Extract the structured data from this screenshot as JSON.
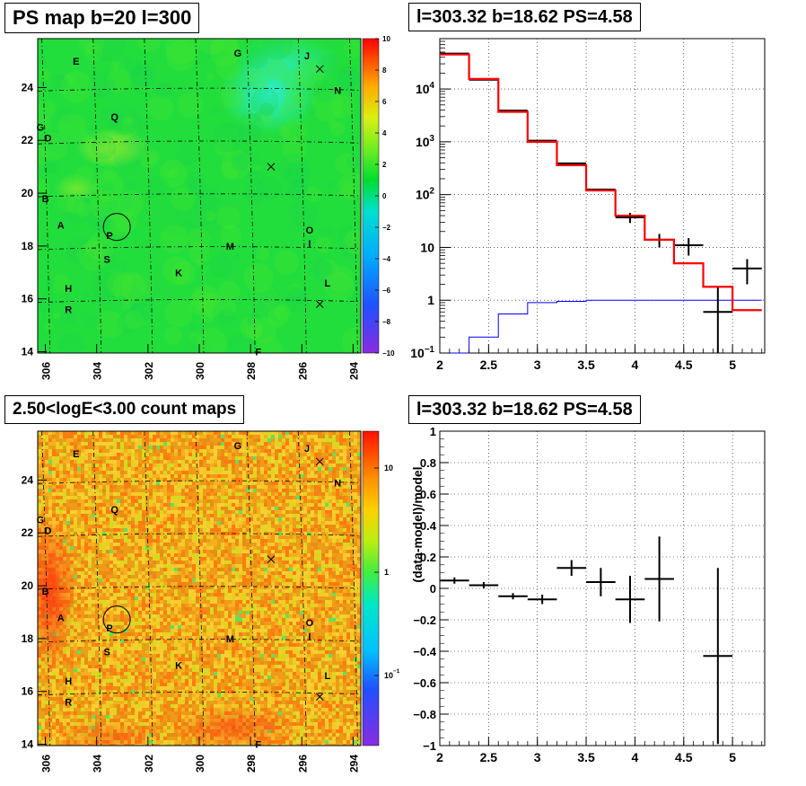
{
  "panels": {
    "ps_map_title": "PS map b=20 l=300",
    "spectrum_title": "l=303.32 b=18.62 PS=4.58",
    "count_map_title": "2.50<logE<3.00 count maps",
    "residual_title": "l=303.32 b=18.62 PS=4.58"
  },
  "chart_data": [
    {
      "type": "heatmap",
      "title": "PS map b=20 l=300",
      "xlabel": "",
      "ylabel": "",
      "x_ticks": [
        "306",
        "304",
        "302",
        "300",
        "298",
        "296",
        "294"
      ],
      "y_ticks": [
        "24",
        "22",
        "20",
        "18",
        "16",
        "14"
      ],
      "xlim": [
        306.5,
        293.8
      ],
      "ylim": [
        14,
        25.8
      ],
      "colorbar": {
        "min": -10,
        "max": 10,
        "ticks": [
          "10",
          "8",
          "6",
          "4",
          "2",
          "0",
          "−2",
          "−4",
          "−6",
          "−8",
          "−10"
        ]
      },
      "labels": [
        {
          "text": "E",
          "l": 304.8,
          "b": 25.0
        },
        {
          "text": "G",
          "l": 298.5,
          "b": 25.3
        },
        {
          "text": "J",
          "l": 295.8,
          "b": 25.2
        },
        {
          "text": "N",
          "l": 294.6,
          "b": 23.9
        },
        {
          "text": "Q",
          "l": 303.3,
          "b": 22.9
        },
        {
          "text": "G",
          "l": 306.2,
          "b": 22.5
        },
        {
          "text": "D",
          "l": 305.9,
          "b": 22.1
        },
        {
          "text": "B",
          "l": 306.0,
          "b": 19.8
        },
        {
          "text": "A",
          "l": 305.4,
          "b": 18.8
        },
        {
          "text": "P",
          "l": 303.5,
          "b": 18.4
        },
        {
          "text": "S",
          "l": 303.6,
          "b": 17.5
        },
        {
          "text": "O",
          "l": 295.7,
          "b": 18.6
        },
        {
          "text": "I",
          "l": 295.7,
          "b": 18.1
        },
        {
          "text": "M",
          "l": 298.8,
          "b": 18.0
        },
        {
          "text": "K",
          "l": 300.8,
          "b": 17.0
        },
        {
          "text": "L",
          "l": 295.0,
          "b": 16.6
        },
        {
          "text": "H",
          "l": 305.1,
          "b": 16.4
        },
        {
          "text": "R",
          "l": 305.1,
          "b": 15.6
        },
        {
          "text": "F",
          "l": 297.7,
          "b": 14.0
        }
      ],
      "crosses": [
        {
          "l": 295.3,
          "b": 24.7
        },
        {
          "l": 297.2,
          "b": 21.0
        },
        {
          "l": 295.3,
          "b": 15.8
        }
      ],
      "circle": {
        "l": 303.32,
        "b": 18.62,
        "r_deg": 0.45
      }
    },
    {
      "type": "line",
      "title": "l=303.32 b=18.62 PS=4.58",
      "xlabel": "",
      "ylabel": "",
      "log_y": true,
      "xlim": [
        2,
        5.3
      ],
      "ylim": [
        0.1,
        90000
      ],
      "x_ticks": [
        "2",
        "2.5",
        "3",
        "3.5",
        "4",
        "4.5",
        "5"
      ],
      "y_ticks": [
        "10^{-1}",
        "1",
        "10",
        "10^{2}",
        "10^{3}",
        "10^{4}"
      ],
      "bin_edges": [
        2.0,
        2.3,
        2.6,
        2.9,
        3.2,
        3.5,
        3.8,
        4.1,
        4.4,
        4.7,
        5.0,
        5.3
      ],
      "series": [
        {
          "color": "#000000",
          "values": [
            47000,
            15000,
            3900,
            1050,
            390,
            125,
            37,
            14,
            11,
            0.6,
            4
          ]
        },
        {
          "color": "#ff0000",
          "values": [
            45000,
            15500,
            3700,
            1000,
            360,
            120,
            40,
            14,
            5,
            1.8,
            0.65
          ]
        },
        {
          "color": "#0000ff",
          "values": [
            0.1,
            0.2,
            0.55,
            0.9,
            0.95,
            1.0,
            1.0,
            1.0,
            1.0,
            1.0,
            1.0
          ]
        }
      ],
      "errors_y_down": [
        0,
        0,
        0,
        0,
        0,
        0,
        8,
        4,
        4,
        0.59,
        2
      ],
      "errors_y_up": [
        0,
        0,
        0,
        0,
        0,
        0,
        8,
        4,
        4,
        1.2,
        2
      ]
    },
    {
      "type": "heatmap",
      "title": "2.50<logE<3.00 count maps",
      "xlabel": "",
      "ylabel": "",
      "x_ticks": [
        "306",
        "304",
        "302",
        "300",
        "298",
        "296",
        "294"
      ],
      "y_ticks": [
        "24",
        "22",
        "20",
        "18",
        "16",
        "14"
      ],
      "colorbar": {
        "log": true,
        "ticks": [
          "10",
          "1",
          "10^{-1}"
        ]
      }
    },
    {
      "type": "scatter",
      "title": "l=303.32 b=18.62 PS=4.58",
      "xlabel": "",
      "ylabel": "(data-model)/model",
      "xlim": [
        2,
        5.3
      ],
      "ylim": [
        -1,
        1
      ],
      "x_ticks": [
        "2",
        "2.5",
        "3",
        "3.5",
        "4",
        "4.5",
        "5"
      ],
      "y_ticks": [
        "1",
        "0.8",
        "0.6",
        "0.4",
        "0.2",
        "0",
        "−0.2",
        "−0.4",
        "−0.6",
        "−0.8",
        "−1"
      ],
      "points": [
        {
          "x": 2.15,
          "y": 0.05,
          "xerr": 0.15,
          "yerr": 0.02
        },
        {
          "x": 2.45,
          "y": 0.02,
          "xerr": 0.15,
          "yerr": 0.02
        },
        {
          "x": 2.75,
          "y": -0.05,
          "xerr": 0.15,
          "yerr": 0.02
        },
        {
          "x": 3.05,
          "y": -0.07,
          "xerr": 0.15,
          "yerr": 0.03
        },
        {
          "x": 3.35,
          "y": 0.13,
          "xerr": 0.15,
          "yerr": 0.05
        },
        {
          "x": 3.65,
          "y": 0.04,
          "xerr": 0.15,
          "yerr": 0.09
        },
        {
          "x": 3.95,
          "y": -0.07,
          "xerr": 0.15,
          "yerr": 0.15
        },
        {
          "x": 4.25,
          "y": 0.06,
          "xerr": 0.15,
          "yerr": 0.27
        },
        {
          "x": 4.85,
          "y": -0.43,
          "xerr": 0.15,
          "yerr": 0.56
        }
      ]
    }
  ]
}
